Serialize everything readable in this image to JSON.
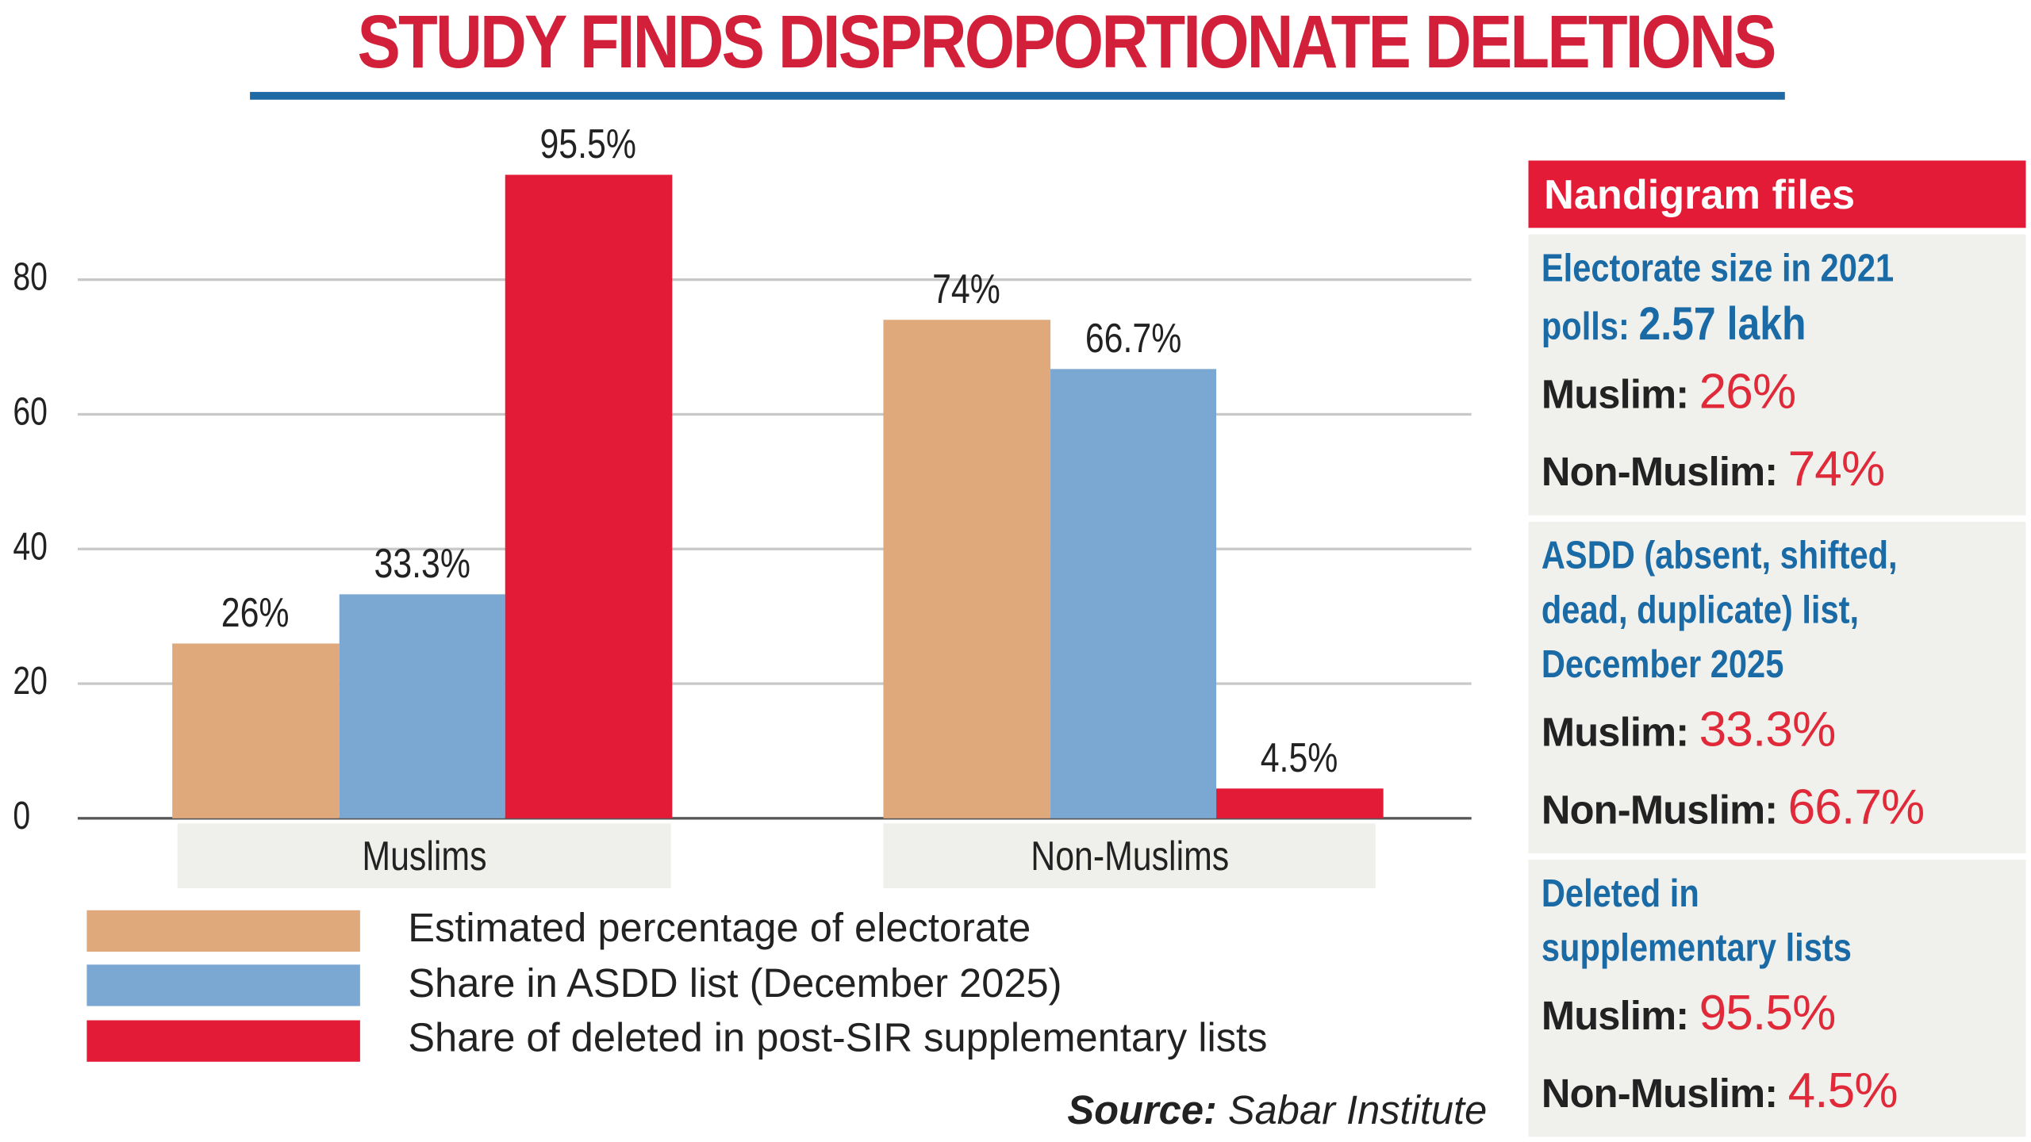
{
  "chart_data": {
    "type": "bar",
    "title": "STUDY FINDS DISPROPORTIONATE DELETIONS",
    "categories": [
      "Muslims",
      "Non-Muslims"
    ],
    "series": [
      {
        "name": "Estimated percentage of electorate",
        "color": "#dfa97c",
        "values": [
          26,
          74
        ],
        "labels": [
          "26%",
          "74%"
        ]
      },
      {
        "name": "Share in ASDD list (December 2025)",
        "color": "#7ba7d3",
        "values": [
          33.3,
          66.7
        ],
        "labels": [
          "33.3%",
          "66.7%"
        ]
      },
      {
        "name": "Share of deleted in post-SIR supplementary lists",
        "color": "#e31b37",
        "values": [
          95.5,
          4.5
        ],
        "labels": [
          "95.5%",
          "4.5%"
        ]
      }
    ],
    "yticks": [
      "0",
      "20",
      "40",
      "60",
      "80"
    ],
    "ylim": [
      0,
      100
    ],
    "grid": true,
    "legend": "bottom-left",
    "source_label": "Source:",
    "source": "Sabar Institute"
  },
  "sidebar": {
    "header": "Nandigram files",
    "panels": [
      {
        "title_lines": [
          "Electorate size in 2021"
        ],
        "title_tail": "polls: ",
        "title_value": "2.57 lakh",
        "rows": [
          {
            "label": "Muslim: ",
            "value": "26%"
          },
          {
            "label": "Non-Muslim: ",
            "value": "74%"
          }
        ]
      },
      {
        "title_lines": [
          "ASDD (absent, shifted,",
          "dead, duplicate) list,",
          "December 2025"
        ],
        "rows": [
          {
            "label": "Muslim: ",
            "value": "33.3%"
          },
          {
            "label": "Non-Muslim: ",
            "value": "66.7%"
          }
        ]
      },
      {
        "title_lines": [
          "Deleted in",
          "supplementary lists"
        ],
        "rows": [
          {
            "label": "Muslim: ",
            "value": "95.5%"
          },
          {
            "label": "Non-Muslim: ",
            "value": "4.5%"
          }
        ]
      }
    ]
  }
}
